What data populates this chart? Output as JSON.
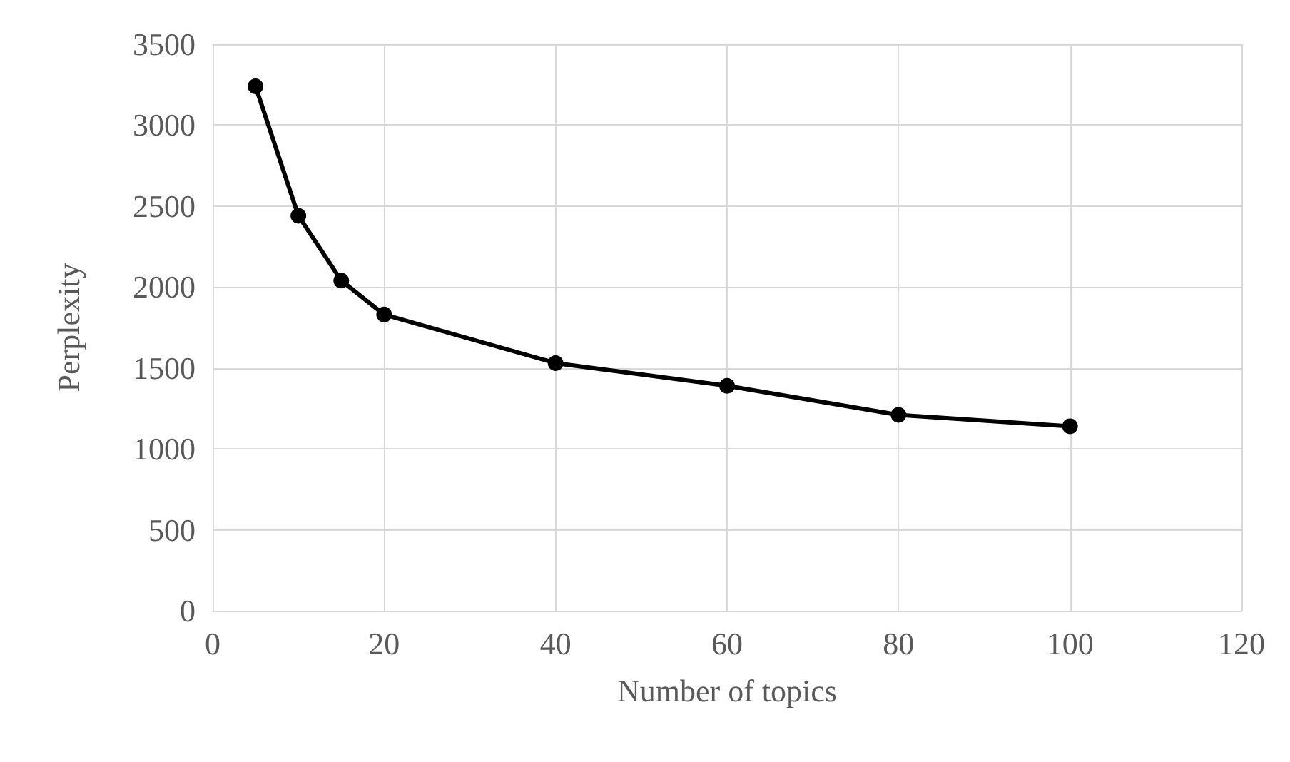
{
  "chart_data": {
    "type": "line",
    "xlabel": "Number of topics",
    "ylabel": "Perplexity",
    "x": [
      5,
      10,
      15,
      20,
      40,
      60,
      80,
      100
    ],
    "series": [
      {
        "color": "#000000",
        "values": [
          3240,
          2440,
          2040,
          1830,
          1530,
          1390,
          1210,
          1140
        ]
      }
    ],
    "xlim": [
      0,
      120
    ],
    "xticks": [
      0,
      20,
      40,
      60,
      80,
      100,
      120
    ],
    "ylim": [
      0,
      3500
    ],
    "yticks": [
      0,
      500,
      1000,
      1500,
      2000,
      2500,
      3000,
      3500
    ],
    "grid": true,
    "marker": "circle",
    "line_style": "solid"
  }
}
